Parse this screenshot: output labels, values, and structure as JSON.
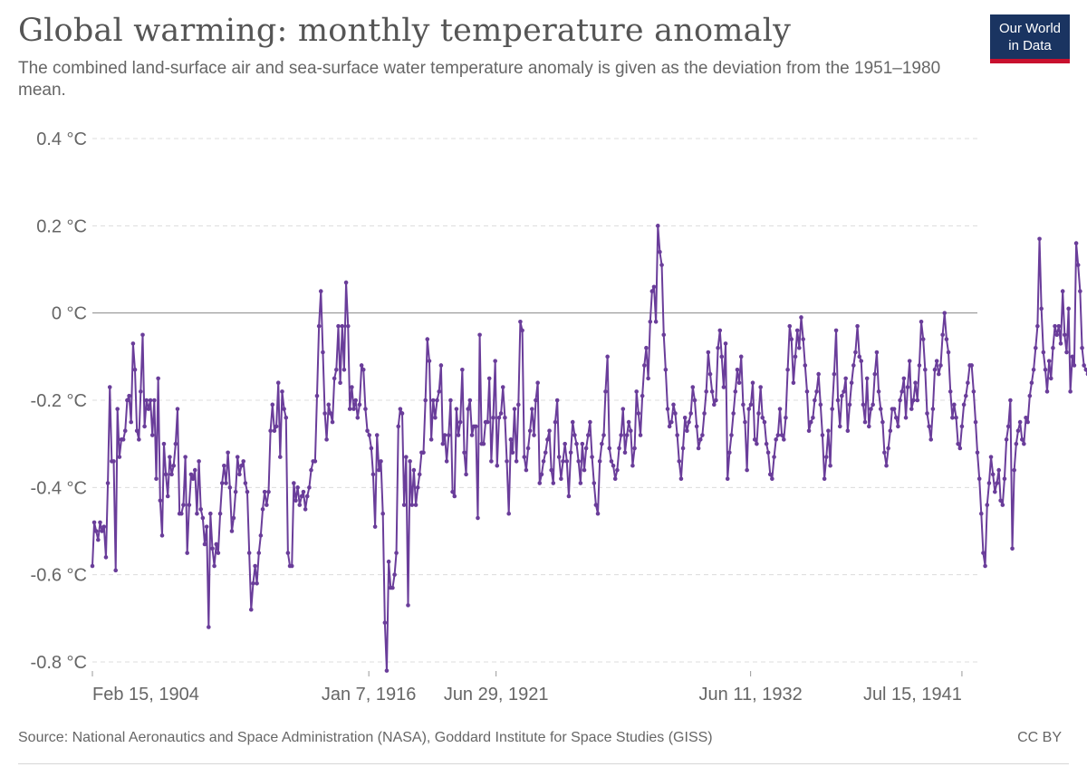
{
  "header": {
    "title": "Global warming: monthly temperature anomaly",
    "subtitle": "The combined land-surface air and sea-surface water temperature anomaly is given as the deviation from the 1951–1980 mean.",
    "logo_line1": "Our World",
    "logo_line2": "in Data"
  },
  "footer": {
    "source": "Source: National Aeronautics and Space Administration (NASA), Goddard Institute for Space Studies (GISS)",
    "license": "CC BY"
  },
  "colors": {
    "series": "#6a3d9a",
    "grid": "#dcdcdc",
    "zero_line": "#8a8a8a",
    "logo_bg": "#1a3461",
    "logo_accent": "#c8102e"
  },
  "chart_data": {
    "type": "line",
    "x_axis": "date",
    "x_range": [
      "1904-02-15",
      "1942-03-15"
    ],
    "y_range": [
      -0.8,
      0.4
    ],
    "y_unit": "°C",
    "y_ticks": [
      {
        "value": 0.4,
        "label": "0.4 °C"
      },
      {
        "value": 0.2,
        "label": "0.2 °C"
      },
      {
        "value": 0,
        "label": "0 °C"
      },
      {
        "value": -0.2,
        "label": "-0.2 °C"
      },
      {
        "value": -0.4,
        "label": "-0.4 °C"
      },
      {
        "value": -0.6,
        "label": "-0.6 °C"
      },
      {
        "value": -0.8,
        "label": "-0.8 °C"
      }
    ],
    "x_ticks": [
      {
        "date": "1904-02-15",
        "label": "Feb 15, 1904"
      },
      {
        "date": "1916-01-07",
        "label": "Jan 7, 1916"
      },
      {
        "date": "1921-06-29",
        "label": "Jun 29, 1921"
      },
      {
        "date": "1932-06-11",
        "label": "Jun 11, 1932"
      },
      {
        "date": "1941-07-15",
        "label": "Jul 15, 1941"
      }
    ],
    "grid": true,
    "legend": "end-of-line label",
    "series": [
      {
        "name": "World",
        "start": "1904-02",
        "frequency": "monthly",
        "values": [
          -0.58,
          -0.48,
          -0.5,
          -0.52,
          -0.48,
          -0.5,
          -0.49,
          -0.56,
          -0.39,
          -0.17,
          -0.34,
          -0.34,
          -0.59,
          -0.22,
          -0.33,
          -0.29,
          -0.29,
          -0.27,
          -0.2,
          -0.19,
          -0.25,
          -0.07,
          -0.13,
          -0.27,
          -0.29,
          -0.18,
          -0.05,
          -0.26,
          -0.2,
          -0.22,
          -0.2,
          -0.28,
          -0.2,
          -0.38,
          -0.15,
          -0.43,
          -0.51,
          -0.3,
          -0.37,
          -0.42,
          -0.33,
          -0.37,
          -0.35,
          -0.3,
          -0.22,
          -0.46,
          -0.46,
          -0.44,
          -0.33,
          -0.55,
          -0.44,
          -0.37,
          -0.38,
          -0.36,
          -0.46,
          -0.34,
          -0.45,
          -0.47,
          -0.53,
          -0.49,
          -0.72,
          -0.46,
          -0.54,
          -0.58,
          -0.53,
          -0.55,
          -0.46,
          -0.39,
          -0.35,
          -0.39,
          -0.32,
          -0.4,
          -0.5,
          -0.47,
          -0.41,
          -0.33,
          -0.37,
          -0.35,
          -0.34,
          -0.39,
          -0.41,
          -0.55,
          -0.68,
          -0.62,
          -0.58,
          -0.62,
          -0.55,
          -0.51,
          -0.45,
          -0.41,
          -0.44,
          -0.41,
          -0.27,
          -0.21,
          -0.27,
          -0.26,
          -0.16,
          -0.33,
          -0.18,
          -0.22,
          -0.24,
          -0.55,
          -0.58,
          -0.58,
          -0.39,
          -0.43,
          -0.4,
          -0.44,
          -0.42,
          -0.41,
          -0.45,
          -0.42,
          -0.4,
          -0.36,
          -0.34,
          -0.34,
          -0.19,
          -0.03,
          0.05,
          -0.09,
          -0.23,
          -0.29,
          -0.21,
          -0.23,
          -0.25,
          -0.15,
          -0.13,
          -0.03,
          -0.16,
          -0.03,
          -0.13,
          0.07,
          -0.03,
          -0.22,
          -0.17,
          -0.22,
          -0.2,
          -0.24,
          -0.21,
          -0.12,
          -0.13,
          -0.22,
          -0.27,
          -0.28,
          -0.31,
          -0.37,
          -0.49,
          -0.28,
          -0.36,
          -0.34,
          -0.46,
          -0.71,
          -0.82,
          -0.57,
          -0.63,
          -0.63,
          -0.6,
          -0.55,
          -0.26,
          -0.22,
          -0.23,
          -0.44,
          -0.33,
          -0.67,
          -0.34,
          -0.44,
          -0.36,
          -0.44,
          -0.4,
          -0.37,
          -0.32,
          -0.32,
          -0.2,
          -0.06,
          -0.11,
          -0.29,
          -0.2,
          -0.24,
          -0.2,
          -0.18,
          -0.12,
          -0.3,
          -0.28,
          -0.34,
          -0.28,
          -0.2,
          -0.41,
          -0.42,
          -0.22,
          -0.28,
          -0.25,
          -0.13,
          -0.32,
          -0.37,
          -0.22,
          -0.2,
          -0.28,
          -0.26,
          -0.26,
          -0.47,
          -0.05,
          -0.3,
          -0.3,
          -0.25,
          -0.25,
          -0.15,
          -0.34,
          -0.24,
          -0.11,
          -0.35,
          -0.24,
          -0.23,
          -0.17,
          -0.24,
          -0.34,
          -0.46,
          -0.29,
          -0.32,
          -0.22,
          -0.34,
          -0.21,
          -0.02,
          -0.04,
          -0.33,
          -0.36,
          -0.31,
          -0.27,
          -0.22,
          -0.28,
          -0.2,
          -0.16,
          -0.39,
          -0.37,
          -0.34,
          -0.32,
          -0.29,
          -0.27,
          -0.36,
          -0.39,
          -0.25,
          -0.2,
          -0.33,
          -0.38,
          -0.34,
          -0.3,
          -0.34,
          -0.42,
          -0.32,
          -0.25,
          -0.28,
          -0.3,
          -0.34,
          -0.39,
          -0.3,
          -0.36,
          -0.31,
          -0.28,
          -0.25,
          -0.33,
          -0.39,
          -0.44,
          -0.46,
          -0.34,
          -0.3,
          -0.28,
          -0.18,
          -0.1,
          -0.31,
          -0.34,
          -0.35,
          -0.38,
          -0.36,
          -0.31,
          -0.28,
          -0.22,
          -0.32,
          -0.28,
          -0.25,
          -0.27,
          -0.35,
          -0.31,
          -0.18,
          -0.23,
          -0.28,
          -0.19,
          -0.12,
          -0.08,
          -0.15,
          -0.02,
          0.05,
          0.06,
          -0.02,
          0.2,
          0.14,
          0.11,
          -0.05,
          -0.13,
          -0.22,
          -0.26,
          -0.25,
          -0.21,
          -0.23,
          -0.28,
          -0.34,
          -0.38,
          -0.31,
          -0.24,
          -0.27,
          -0.25,
          -0.23,
          -0.17,
          -0.2,
          -0.26,
          -0.31,
          -0.29,
          -0.28,
          -0.23,
          -0.18,
          -0.09,
          -0.14,
          -0.18,
          -0.21,
          -0.2,
          -0.08,
          -0.04,
          -0.1,
          -0.17,
          -0.07,
          -0.38,
          -0.32,
          -0.28,
          -0.23,
          -0.18,
          -0.13,
          -0.16,
          -0.1,
          -0.21,
          -0.25,
          -0.36,
          -0.22,
          -0.21,
          -0.16,
          -0.29,
          -0.3,
          -0.23,
          -0.17,
          -0.24,
          -0.25,
          -0.3,
          -0.32,
          -0.37,
          -0.38,
          -0.33,
          -0.29,
          -0.28,
          -0.22,
          -0.28,
          -0.29,
          -0.24,
          -0.13,
          -0.03,
          -0.06,
          -0.16,
          -0.1,
          -0.04,
          -0.08,
          -0.01,
          -0.06,
          -0.12,
          -0.18,
          -0.27,
          -0.25,
          -0.24,
          -0.2,
          -0.18,
          -0.14,
          -0.21,
          -0.28,
          -0.38,
          -0.33,
          -0.27,
          -0.35,
          -0.22,
          -0.14,
          -0.04,
          -0.2,
          -0.26,
          -0.19,
          -0.18,
          -0.15,
          -0.27,
          -0.21,
          -0.16,
          -0.12,
          -0.09,
          -0.03,
          -0.1,
          -0.11,
          -0.21,
          -0.25,
          -0.15,
          -0.26,
          -0.22,
          -0.21,
          -0.14,
          -0.09,
          -0.18,
          -0.22,
          -0.25,
          -0.32,
          -0.35,
          -0.31,
          -0.27,
          -0.22,
          -0.22,
          -0.24,
          -0.26,
          -0.2,
          -0.18,
          -0.15,
          -0.24,
          -0.17,
          -0.11,
          -0.22,
          -0.2,
          -0.16,
          -0.2,
          -0.12,
          -0.02,
          -0.06,
          -0.13,
          -0.23,
          -0.26,
          -0.29,
          -0.22,
          -0.13,
          -0.11,
          -0.14,
          -0.12,
          -0.05,
          0.0,
          -0.06,
          -0.09,
          -0.18,
          -0.24,
          -0.21,
          -0.24,
          -0.3,
          -0.31,
          -0.26,
          -0.21,
          -0.19,
          -0.16,
          -0.12,
          -0.12,
          -0.18,
          -0.25,
          -0.32,
          -0.38,
          -0.46,
          -0.55,
          -0.58,
          -0.44,
          -0.39,
          -0.33,
          -0.37,
          -0.41,
          -0.39,
          -0.36,
          -0.43,
          -0.44,
          -0.38,
          -0.29,
          -0.26,
          -0.2,
          -0.54,
          -0.36,
          -0.3,
          -0.27,
          -0.25,
          -0.29,
          -0.3,
          -0.24,
          -0.25,
          -0.19,
          -0.16,
          -0.13,
          -0.08,
          -0.03,
          0.17,
          0.01,
          -0.09,
          -0.13,
          -0.18,
          -0.11,
          -0.15,
          -0.08,
          -0.03,
          -0.05,
          -0.03,
          -0.07,
          0.05,
          -0.05,
          -0.09,
          0.01,
          -0.18,
          -0.1,
          -0.12,
          0.16,
          0.11,
          0.05,
          -0.08,
          -0.12,
          -0.13,
          -0.14,
          -0.05,
          -0.1,
          -0.17,
          -0.23,
          -0.28,
          -0.26,
          -0.24,
          -0.2,
          -0.17,
          -0.14,
          -0.2,
          -0.22,
          -0.26,
          -0.25,
          -0.22,
          -0.23,
          -0.19,
          -0.26,
          -0.28,
          -0.32,
          -0.22,
          -0.18,
          -0.17,
          -0.24,
          -0.28,
          -0.33,
          -0.44,
          -0.2,
          -0.14,
          -0.03,
          0.0,
          -0.08,
          -0.13,
          -0.16,
          -0.11,
          -0.14,
          -0.22,
          -0.28,
          -0.24,
          -0.21,
          -0.16,
          -0.09,
          -0.05,
          0.04,
          -0.11,
          -0.13,
          -0.04,
          0.03,
          0.14,
          0.06,
          -0.1,
          -0.24,
          -0.36,
          -0.33,
          -0.28,
          -0.25,
          -0.2,
          -0.22,
          -0.21,
          -0.18,
          -0.21,
          -0.15,
          -0.1,
          -0.06,
          -0.13,
          -0.28,
          -0.37,
          -0.3,
          -0.2,
          -0.2,
          -0.22,
          -0.14,
          -0.05,
          -0.09,
          -0.17,
          -0.05,
          -0.01,
          -0.05,
          -0.1,
          -0.02,
          0.03,
          0.02,
          0.0,
          -0.06,
          -0.07,
          -0.12,
          -0.2,
          -0.14,
          -0.1,
          -0.05,
          -0.08,
          -0.12,
          -0.09,
          0.02,
          0.06,
          0.09,
          0.02,
          -0.02,
          -0.08,
          -0.05,
          -0.01,
          0.04,
          0.08,
          0.09,
          0.05,
          -0.03,
          -0.08,
          -0.01,
          -0.06,
          -0.1,
          -0.15,
          -0.17,
          -0.12,
          -0.07,
          -0.05,
          0.0,
          0.07,
          0.03,
          0.01,
          -0.03,
          -0.08,
          -0.12,
          -0.1,
          -0.06,
          -0.11,
          -0.14,
          -0.17,
          -0.13,
          -0.09,
          -0.06,
          -0.07,
          -0.08,
          -0.06,
          0.07,
          0.12,
          0.44,
          0.07,
          0.0,
          0.09,
          0.13,
          0.18,
          0.12,
          0.1,
          0.13,
          0.1,
          0.13,
          0.08,
          0.14,
          0.22,
          0.32,
          0.22,
          0.31,
          0.1,
          0.18,
          0.16,
          0.15,
          0.13,
          0.22
        ]
      }
    ]
  }
}
